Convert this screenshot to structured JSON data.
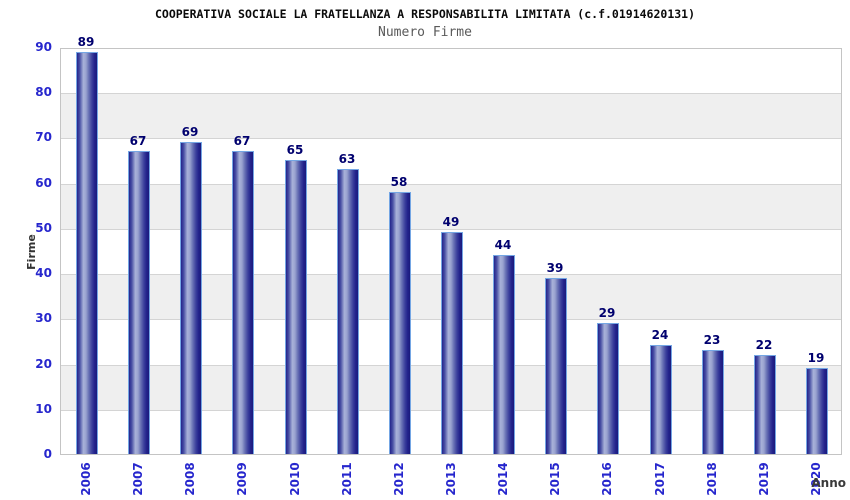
{
  "chart_data": {
    "type": "bar",
    "title": "COOPERATIVA SOCIALE LA FRATELLANZA A RESPONSABILITA LIMITATA (c.f.01914620131)",
    "subtitle": "Numero Firme",
    "xlabel": "Anno",
    "ylabel": "Firme",
    "categories": [
      "2006",
      "2007",
      "2008",
      "2009",
      "2010",
      "2011",
      "2012",
      "2013",
      "2014",
      "2015",
      "2016",
      "2017",
      "2018",
      "2019",
      "2020"
    ],
    "values": [
      89,
      67,
      69,
      67,
      65,
      63,
      58,
      49,
      44,
      39,
      29,
      24,
      23,
      22,
      19
    ],
    "ylim": [
      0,
      90
    ],
    "ytick_step": 10,
    "grid": "horizontal-gridlines-with-alternating-bands",
    "legend_position": "none",
    "colors": {
      "bar_dark": "#1a1a7c",
      "bar_light": "#a9b2d9",
      "bar_outline": "#74a6e4",
      "tick_label_blue": "#2626cd",
      "value_label_navy": "#00006e",
      "band_gray": "#efefef",
      "gridline_gray": "#d4d4d4",
      "title_color": "#0a0a0a",
      "subtitle_color": "#5a5a5a",
      "axis_title_color": "#333333"
    }
  }
}
